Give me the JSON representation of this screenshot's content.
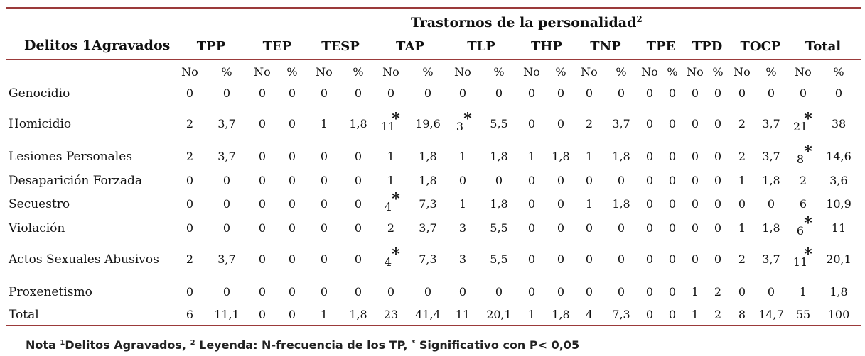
{
  "table": {
    "supertitle": "Trastornos de la personalidad",
    "supertitle_sup": "2",
    "row_header": "Delitos 1Agravados",
    "groups": [
      "TPP",
      "TEP",
      "TESP",
      "TAP",
      "TLP",
      "THP",
      "TNP",
      "TPE",
      "TPD",
      "TOCP",
      "Total"
    ],
    "sub_no": "No",
    "sub_pct": "%",
    "rows": [
      {
        "label": "Genocidio",
        "cells": [
          "0",
          "0",
          "0",
          "0",
          "0",
          "0",
          "0",
          "0",
          "0",
          "0",
          "0",
          "0",
          "0",
          "0",
          "0",
          "0",
          "0",
          "0",
          "0",
          "0",
          "0",
          "0"
        ],
        "stars": []
      },
      {
        "label": "Homicidio",
        "cells": [
          "2",
          "3,7",
          "0",
          "0",
          "1",
          "1,8",
          "11",
          "19,6",
          "3",
          "5,5",
          "0",
          "0",
          "2",
          "3,7",
          "0",
          "0",
          "0",
          "0",
          "2",
          "3,7",
          "21",
          "38"
        ],
        "stars": [
          6,
          8,
          20
        ]
      },
      {
        "label": "Lesiones Personales",
        "cells": [
          "2",
          "3,7",
          "0",
          "0",
          "0",
          "0",
          "1",
          "1,8",
          "1",
          "1,8",
          "1",
          "1,8",
          "1",
          "1,8",
          "0",
          "0",
          "0",
          "0",
          "2",
          "3,7",
          "8",
          "14,6"
        ],
        "stars": [
          20
        ]
      },
      {
        "label": "Desaparición Forzada",
        "cells": [
          "0",
          "0",
          "0",
          "0",
          "0",
          "0",
          "1",
          "1,8",
          "0",
          "0",
          "0",
          "0",
          "0",
          "0",
          "0",
          "0",
          "0",
          "0",
          "1",
          "1,8",
          "2",
          "3,6"
        ],
        "stars": []
      },
      {
        "label": "Secuestro",
        "cells": [
          "0",
          "0",
          "0",
          "0",
          "0",
          "0",
          "4",
          "7,3",
          "1",
          "1,8",
          "0",
          "0",
          "1",
          "1,8",
          "0",
          "0",
          "0",
          "0",
          "0",
          "0",
          "6",
          "10,9"
        ],
        "stars": [
          6
        ]
      },
      {
        "label": "Violación",
        "cells": [
          "0",
          "0",
          "0",
          "0",
          "0",
          "0",
          "2",
          "3,7",
          "3",
          "5,5",
          "0",
          "0",
          "0",
          "0",
          "0",
          "0",
          "0",
          "0",
          "1",
          "1,8",
          "6",
          "11"
        ],
        "stars": [
          20
        ]
      },
      {
        "label": "Actos Sexuales Abusivos",
        "cells": [
          "2",
          "3,7",
          "0",
          "0",
          "0",
          "0",
          "4",
          "7,3",
          "3",
          "5,5",
          "0",
          "0",
          "0",
          "0",
          "0",
          "0",
          "0",
          "0",
          "2",
          "3,7",
          "11",
          "20,1"
        ],
        "stars": [
          6,
          20
        ]
      },
      {
        "label": "Proxenetismo",
        "cells": [
          "0",
          "0",
          "0",
          "0",
          "0",
          "0",
          "0",
          "0",
          "0",
          "0",
          "0",
          "0",
          "0",
          "0",
          "0",
          "0",
          "1",
          "2",
          "0",
          "0",
          "1",
          "1,8"
        ],
        "stars": []
      },
      {
        "label": "Total",
        "cells": [
          "6",
          "11,1",
          "0",
          "0",
          "1",
          "1,8",
          "23",
          "41,4",
          "11",
          "20,1",
          "1",
          "1,8",
          "4",
          "7,3",
          "0",
          "0",
          "1",
          "2",
          "8",
          "14,7",
          "55",
          "100"
        ],
        "stars": []
      }
    ]
  },
  "note": {
    "prefix": "Nota ",
    "sup1": "1",
    "part1": "Delitos Agravados, ",
    "sup2": "2",
    "part2": "  Leyenda: N-frecuencia de los TP, ",
    "sup3": "*",
    "part3": " Significativo con P< 0,05"
  }
}
